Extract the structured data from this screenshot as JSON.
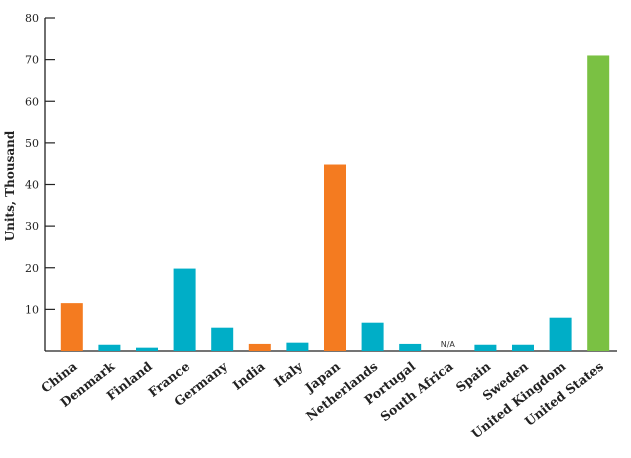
{
  "chart_data": {
    "type": "bar",
    "categories": [
      "China",
      "Denmark",
      "Finland",
      "France",
      "Germany",
      "India",
      "Italy",
      "Japan",
      "Netherlands",
      "Portugal",
      "South Africa",
      "Spain",
      "Sweden",
      "United Kingdom",
      "United States"
    ],
    "values": [
      11.5,
      1.5,
      0.8,
      19.8,
      5.6,
      1.7,
      2.0,
      44.8,
      6.8,
      1.7,
      null,
      1.5,
      1.5,
      8.0,
      71.0
    ],
    "bar_colors": [
      "#f47b20",
      "#00aec7",
      "#00aec7",
      "#00aec7",
      "#00aec7",
      "#f47b20",
      "#00aec7",
      "#f47b20",
      "#00aec7",
      "#00aec7",
      "#00aec7",
      "#00aec7",
      "#00aec7",
      "#00aec7",
      "#7ac143"
    ],
    "missing_label": "N/A",
    "ylabel": "Units, Thousand",
    "xlabel": "",
    "title": "",
    "ylim": [
      0,
      80
    ],
    "yticks": [
      "80",
      "70",
      "60",
      "50",
      "40",
      "30",
      "20",
      "10"
    ],
    "grid": false,
    "axis_color": "#222222"
  }
}
